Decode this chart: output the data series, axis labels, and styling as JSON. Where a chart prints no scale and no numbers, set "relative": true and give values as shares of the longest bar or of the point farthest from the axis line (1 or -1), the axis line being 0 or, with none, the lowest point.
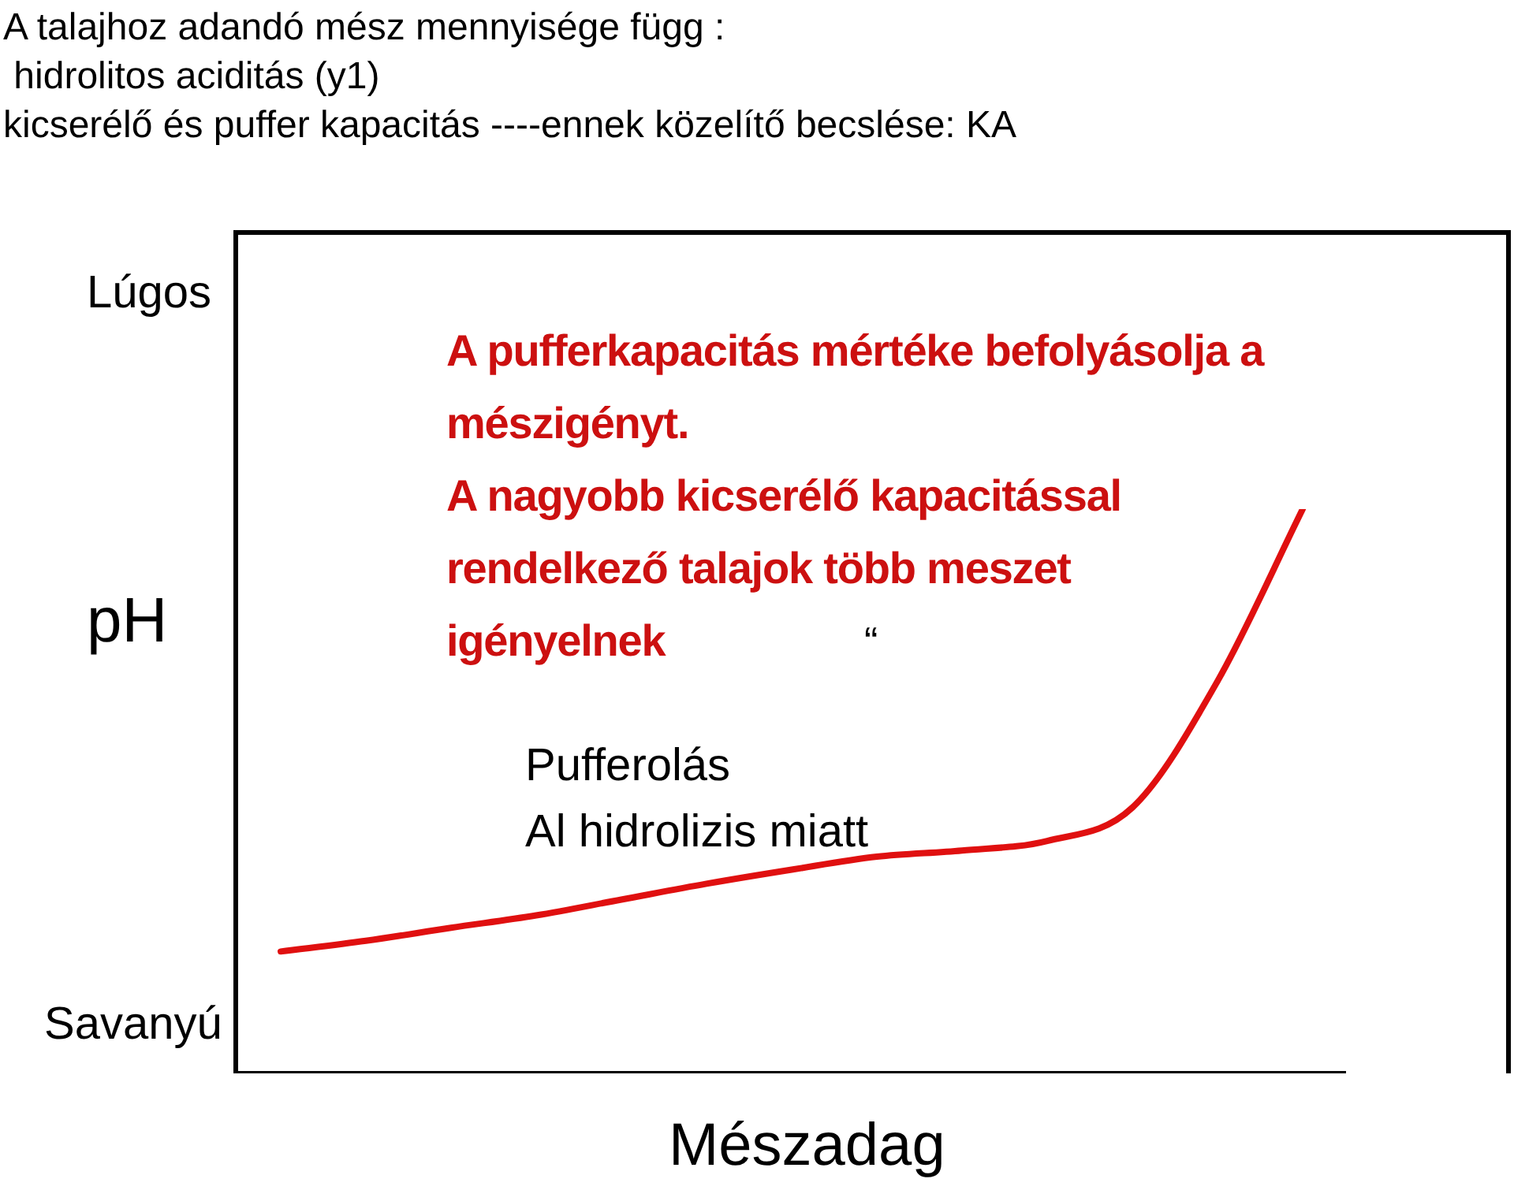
{
  "chart_data": {
    "type": "line",
    "title": "A talajhoz adandó mész mennyisége függ :\n hidrolitos aciditás (y1)\nkicserélő és puffer kapacitás ----ennek közelítő becslése: KA",
    "xlabel": "Mészadag",
    "ylabel": "pH",
    "relative": true,
    "grid": false,
    "legend": false,
    "marker": "none",
    "line_style": "solid",
    "categories": [
      null,
      null,
      null,
      null,
      null,
      null,
      null,
      null,
      null,
      null,
      null,
      null,
      null
    ],
    "series": [
      {
        "color": "#e01010",
        "values": [
          0.216,
          0.235,
          0.258,
          0.28,
          0.308,
          0.336,
          0.361,
          0.384,
          0.395,
          0.412,
          0.471,
          0.695,
          1
        ]
      }
    ],
    "annotations": [
      "Lúgos",
      "Savanyú",
      "A pufferkapacitás mértéke befolyásolja a\nmészigényt.\nA nagyobb kicserélő kapacitással\nrendelkező talajok több meszet\nigényelnek",
      "“",
      "Pufferolás\nAl hidrolizis miatt"
    ]
  }
}
